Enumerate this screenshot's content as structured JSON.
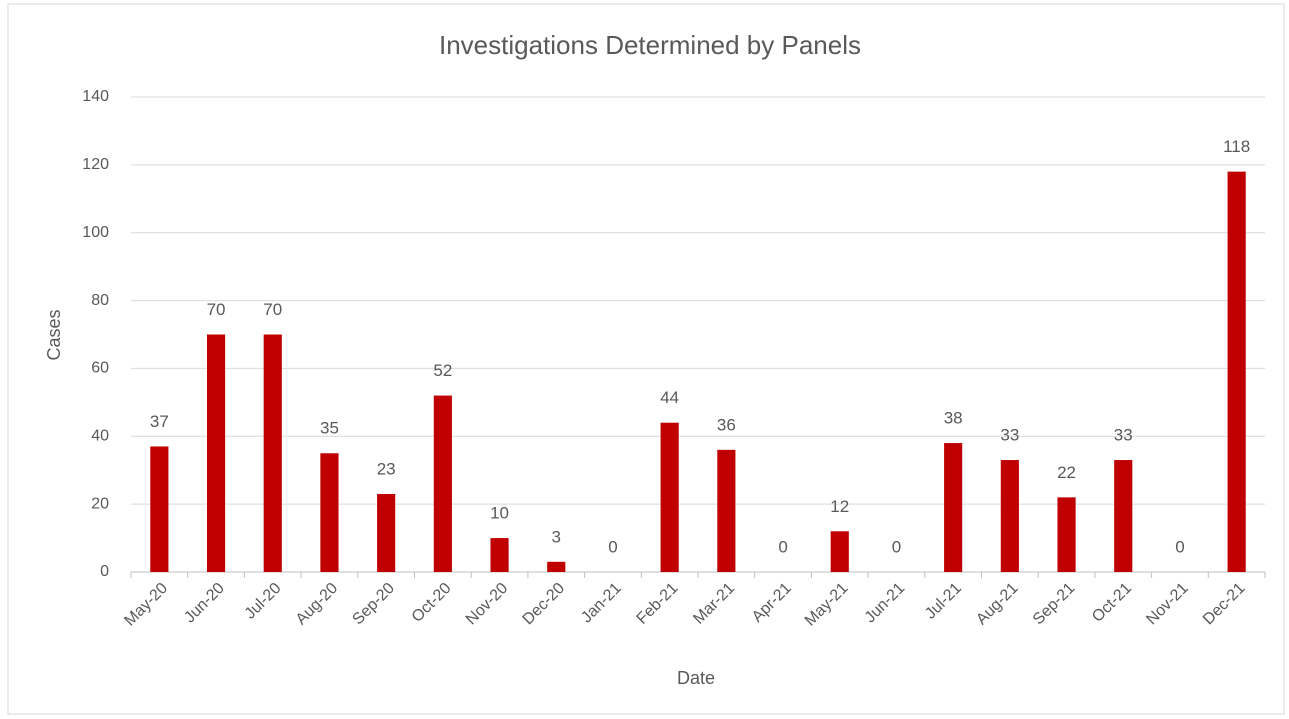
{
  "chart_data": {
    "type": "bar",
    "title": "Investigations Determined by Panels",
    "x_label": "Date",
    "y_label": "Cases",
    "categories": [
      "May-20",
      "Jun-20",
      "Jul-20",
      "Aug-20",
      "Sep-20",
      "Oct-20",
      "Nov-20",
      "Dec-20",
      "Jan-21",
      "Feb-21",
      "Mar-21",
      "Apr-21",
      "May-21",
      "Jun-21",
      "Jul-21",
      "Aug-21",
      "Sep-21",
      "Oct-21",
      "Nov-21",
      "Dec-21"
    ],
    "values": [
      37,
      70,
      70,
      35,
      23,
      52,
      10,
      3,
      0,
      44,
      36,
      0,
      12,
      0,
      38,
      33,
      22,
      33,
      0,
      118
    ],
    "color": "#c00000",
    "ylim": [
      0,
      140
    ],
    "yticks": [
      0,
      20,
      40,
      60,
      80,
      100,
      120,
      140
    ],
    "grid": true
  }
}
